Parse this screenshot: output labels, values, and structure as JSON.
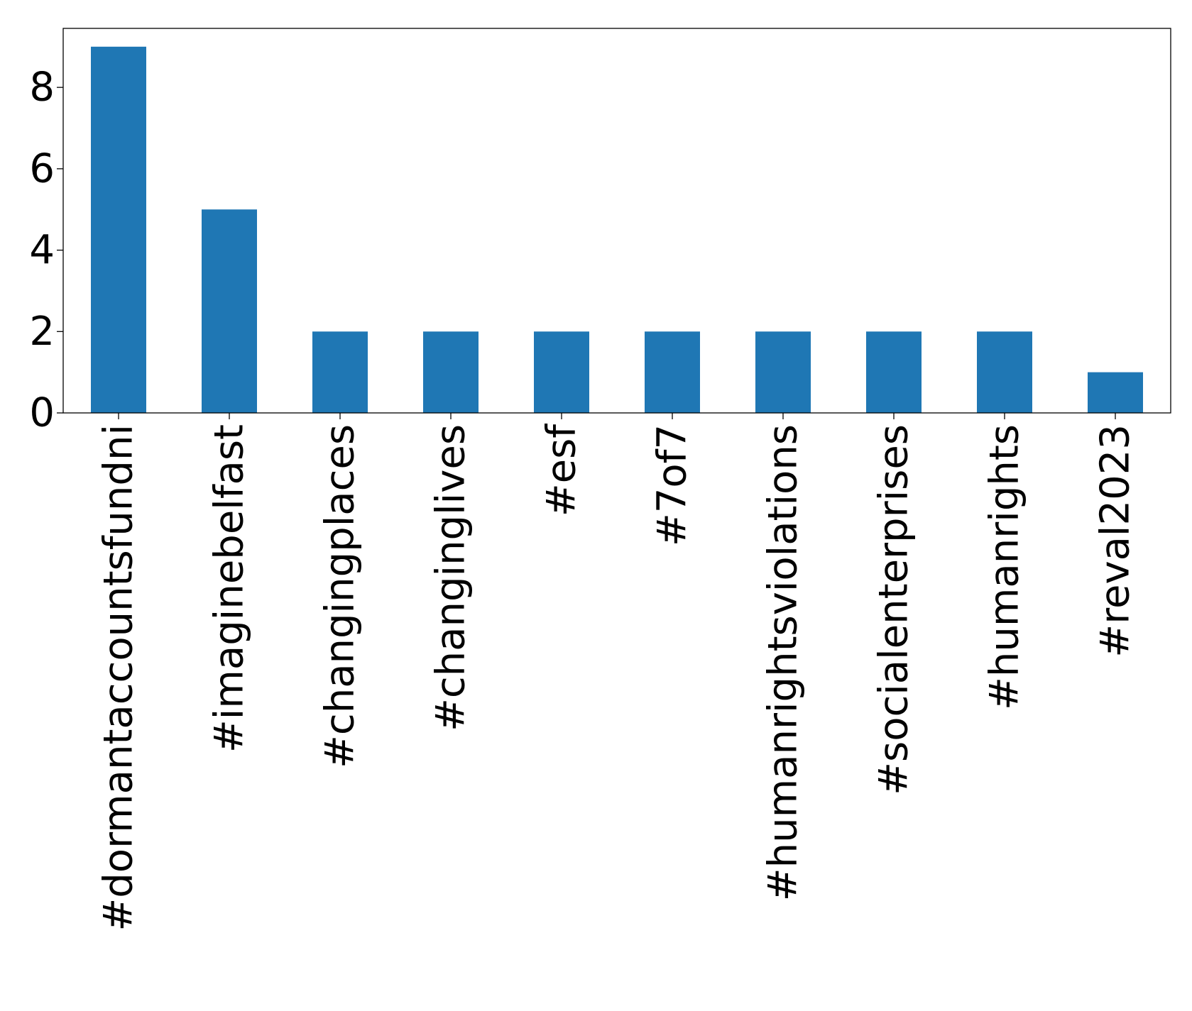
{
  "chart_data": {
    "type": "bar",
    "categories": [
      "#dormantaccountsfundni",
      "#imaginebelfast",
      "#changingplaces",
      "#changinglives",
      "#esf",
      "#7of7",
      "#humanrightsviolations",
      "#socialenterprises",
      "#humanrights",
      "#reval2023"
    ],
    "values": [
      9,
      5,
      2,
      2,
      2,
      2,
      2,
      2,
      2,
      1
    ],
    "title": "",
    "xlabel": "",
    "ylabel": "",
    "ylim": [
      0,
      9.45
    ],
    "yticks": [
      0,
      2,
      4,
      6,
      8
    ],
    "bar_color": "#1f77b4",
    "grid": false,
    "legend": "none"
  }
}
